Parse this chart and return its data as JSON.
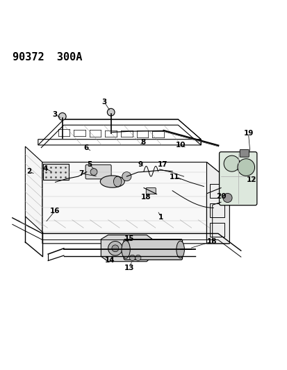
{
  "title": "90372  300A",
  "bg_color": "#ffffff",
  "line_color": "#000000",
  "title_fontsize": 11,
  "label_fontsize": 7.5
}
